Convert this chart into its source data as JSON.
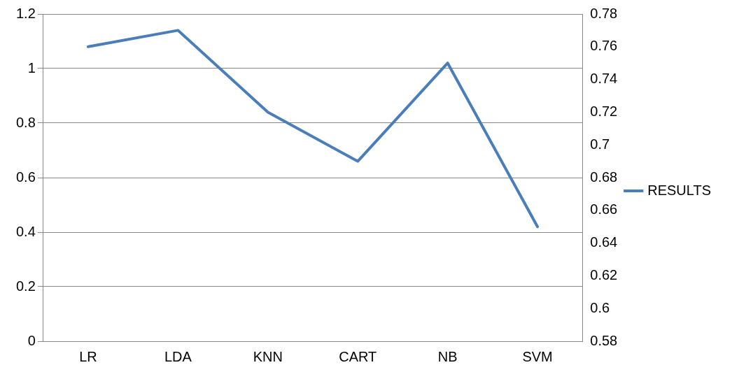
{
  "chart_data": {
    "type": "line",
    "categories": [
      "LR",
      "LDA",
      "KNN",
      "CART",
      "NB",
      "SVM"
    ],
    "series": [
      {
        "name": "RESULTS",
        "color": "#4a7ebb",
        "axis": "y2",
        "values": [
          0.76,
          0.77,
          0.72,
          0.69,
          0.75,
          0.65
        ]
      }
    ],
    "ylim": [
      0,
      1.2
    ],
    "yticks": [
      0,
      0.2,
      0.4,
      0.6,
      0.8,
      1,
      1.2
    ],
    "y2lim": [
      0.58,
      0.78
    ],
    "y2ticks": [
      0.58,
      0.6,
      0.62,
      0.64,
      0.66,
      0.68,
      0.7,
      0.72,
      0.74,
      0.76,
      0.78
    ],
    "grid": "y",
    "legend": "right",
    "marker": "none",
    "line_style": "solid"
  }
}
